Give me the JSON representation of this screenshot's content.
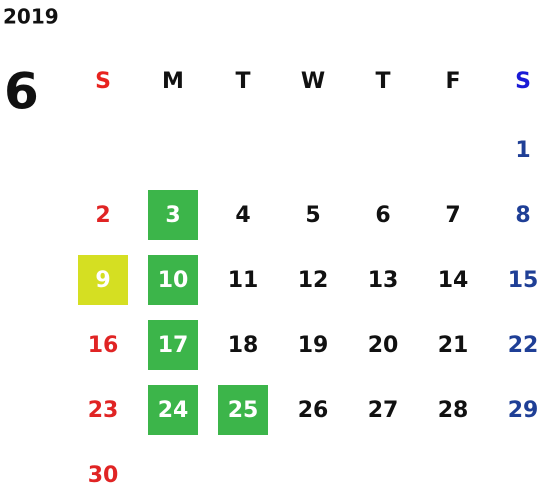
{
  "year": "2019",
  "month": "6",
  "weekdays": [
    {
      "label": "S",
      "color": "#e8231f"
    },
    {
      "label": "M",
      "color": "#111111"
    },
    {
      "label": "T",
      "color": "#111111"
    },
    {
      "label": "W",
      "color": "#111111"
    },
    {
      "label": "T",
      "color": "#111111"
    },
    {
      "label": "F",
      "color": "#111111"
    },
    {
      "label": "S",
      "color": "#1a1ad6"
    }
  ],
  "date_colors": [
    "#e02424",
    "#111111",
    "#111111",
    "#111111",
    "#111111",
    "#111111",
    "#1f3f96"
  ],
  "highlight_text_color": "#ffffff",
  "weeks": [
    [
      null,
      null,
      null,
      null,
      null,
      null,
      {
        "day": 1
      }
    ],
    [
      {
        "day": 2
      },
      {
        "day": 3,
        "highlight": "#3cb54a"
      },
      {
        "day": 4
      },
      {
        "day": 5
      },
      {
        "day": 6
      },
      {
        "day": 7
      },
      {
        "day": 8
      }
    ],
    [
      {
        "day": 9,
        "highlight": "#d5df22"
      },
      {
        "day": 10,
        "highlight": "#3cb54a"
      },
      {
        "day": 11
      },
      {
        "day": 12
      },
      {
        "day": 13
      },
      {
        "day": 14
      },
      {
        "day": 15
      }
    ],
    [
      {
        "day": 16
      },
      {
        "day": 17,
        "highlight": "#3cb54a"
      },
      {
        "day": 18
      },
      {
        "day": 19
      },
      {
        "day": 20
      },
      {
        "day": 21
      },
      {
        "day": 22
      }
    ],
    [
      {
        "day": 23
      },
      {
        "day": 24,
        "highlight": "#3cb54a"
      },
      {
        "day": 25,
        "highlight": "#3cb54a"
      },
      {
        "day": 26
      },
      {
        "day": 27
      },
      {
        "day": 28
      },
      {
        "day": 29
      }
    ],
    [
      {
        "day": 30
      },
      null,
      null,
      null,
      null,
      null,
      null
    ]
  ]
}
